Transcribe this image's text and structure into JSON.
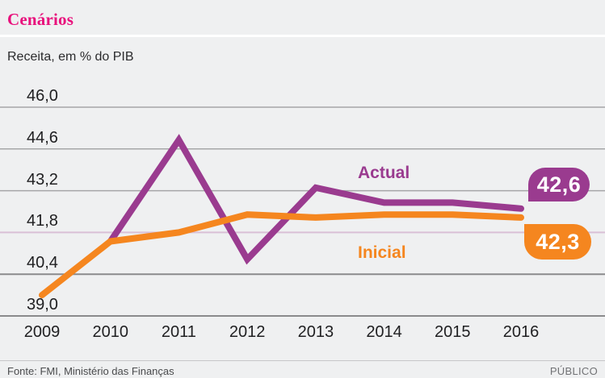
{
  "header": {
    "title": "Cenários",
    "subtitle": "Receita, em % do PIB"
  },
  "annotations": {
    "actual_label": "Actual",
    "inicial_label": "Inicial",
    "actual_end_value": "42,6",
    "inicial_end_value": "42,3"
  },
  "footer": {
    "source": "Fonte: FMI, Ministério das Finanças",
    "brand": "PÚBLICO"
  },
  "colors": {
    "background": "#eff0f1",
    "title_pink": "#e8117c",
    "actual_purple": "#9a3b8f",
    "inicial_orange": "#f5861f",
    "grid_normal": "#a6a6a8",
    "grid_strong": "#8a8a8c",
    "grid_accent": "#d9c0d6",
    "axis_text": "#202022"
  },
  "chart_data": {
    "type": "line",
    "title": "Cenários",
    "ylabel": "Receita, em % do PIB",
    "categories": [
      "2009",
      "2010",
      "2011",
      "2012",
      "2013",
      "2014",
      "2015",
      "2016"
    ],
    "series": [
      {
        "name": "Actual",
        "color_key": "actual_purple",
        "values": [
          null,
          41.5,
          44.9,
          40.9,
          43.3,
          42.8,
          42.8,
          42.6
        ],
        "end_label": "42,6"
      },
      {
        "name": "Inicial",
        "color_key": "inicial_orange",
        "values": [
          39.7,
          41.5,
          41.8,
          42.4,
          42.3,
          42.4,
          42.4,
          42.3
        ],
        "end_label": "42,3"
      }
    ],
    "y_ticks": [
      {
        "label": "46,0",
        "value": 46.0,
        "style": "normal"
      },
      {
        "label": "44,6",
        "value": 44.6,
        "style": "normal"
      },
      {
        "label": "43,2",
        "value": 43.2,
        "style": "normal"
      },
      {
        "label": "41,8",
        "value": 41.8,
        "style": "accent"
      },
      {
        "label": "40,4",
        "value": 40.4,
        "style": "strong"
      },
      {
        "label": "39,0",
        "value": 39.0,
        "style": "strong"
      }
    ],
    "ylim": [
      39.0,
      46.0
    ],
    "grid": true,
    "legend": "inline-labels"
  }
}
